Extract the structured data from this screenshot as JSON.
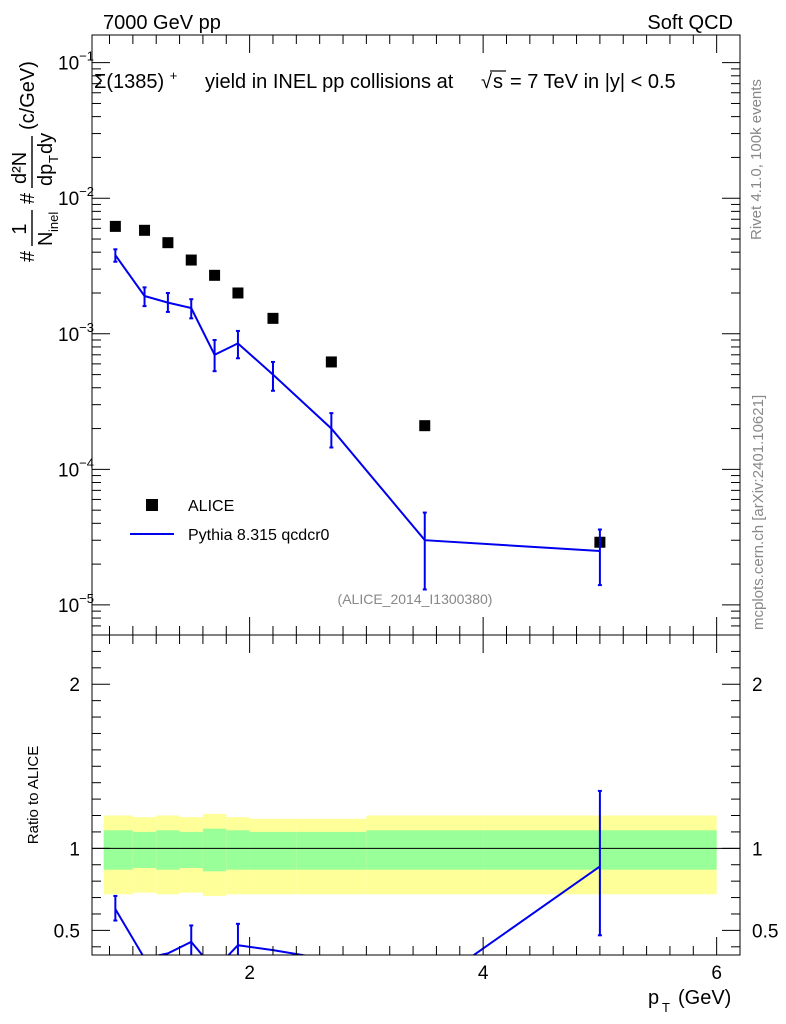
{
  "header": {
    "left": "7000 GeV pp",
    "right": "Soft QCD"
  },
  "side_text": {
    "rivet": "Rivet 4.1.0,  100k events",
    "mcplots": "mcplots.cern.ch [arXiv:2401.10621]"
  },
  "chart_data": [
    {
      "type": "scatter",
      "title": "Σ(1385)⁺ yield in INEL pp collisions at √s = 7 TeV in |y| < 0.5",
      "title_parts": {
        "sym": "Σ(1385)",
        "sup": "+",
        "mid": "yield in INEL pp collisions at",
        "sqrt": "√",
        "s": "s",
        "tail": "= 7 TeV in |y| < 0.5"
      },
      "ylabel": "#1/N_inel # d²N/dp_T dy (c/GeV)",
      "ylabel_parts": {
        "hash1": "#",
        "one": "1",
        "N": "N",
        "inel": "inel",
        "hash2": "#",
        "dN": "d²N",
        "dp": "dp",
        "T": "T",
        "dy": "dy",
        "unit": "(c/GeV)"
      },
      "xlabel": "p_T (GeV)",
      "yscale": "log",
      "ylim": [
        6e-06,
        0.16
      ],
      "xlim": [
        0.65,
        6.2
      ],
      "y_ticks": [
        {
          "value": 0.1,
          "label": "10",
          "exp": "−1"
        },
        {
          "value": 0.01,
          "label": "10",
          "exp": "−2"
        },
        {
          "value": 0.001,
          "label": "10",
          "exp": "−3"
        },
        {
          "value": 0.0001,
          "label": "10",
          "exp": "−4"
        },
        {
          "value": 1e-05,
          "label": "10",
          "exp": "−5"
        }
      ],
      "watermark": "(ALICE_2014_I1300380)",
      "legend": {
        "placement": "bottom-left",
        "entries": [
          "ALICE",
          "Pythia 8.315 qcdcr0"
        ]
      },
      "series": [
        {
          "name": "ALICE",
          "color": "#000000",
          "x": [
            0.85,
            1.1,
            1.3,
            1.5,
            1.7,
            1.9,
            2.2,
            2.7,
            3.5,
            5.0
          ],
          "y": [
            0.0062,
            0.0058,
            0.0047,
            0.0035,
            0.0027,
            0.002,
            0.0013,
            0.00062,
            0.00021,
            2.9e-05
          ]
        },
        {
          "name": "Pythia 8.315 qcdcr0",
          "color": "#0000ee",
          "x": [
            0.85,
            1.1,
            1.3,
            1.5,
            1.7,
            1.9,
            2.2,
            2.7,
            3.5,
            5.0
          ],
          "y": [
            0.0038,
            0.0019,
            0.0017,
            0.00155,
            0.0007,
            0.00085,
            0.0005,
            0.0002,
            3e-05,
            2.5e-05
          ],
          "err_lo": [
            0.0034,
            0.0016,
            0.00145,
            0.0013,
            0.00053,
            0.00066,
            0.00038,
            0.000145,
            1.3e-05,
            1.4e-05
          ],
          "err_hi": [
            0.0042,
            0.0022,
            0.002,
            0.0018,
            0.0009,
            0.00105,
            0.00062,
            0.00026,
            4.8e-05,
            3.6e-05
          ]
        }
      ]
    },
    {
      "type": "line",
      "ylabel": "Ratio to ALICE",
      "xlabel": "p_T (GeV)",
      "ylim": [
        0.35,
        2.3
      ],
      "xlim": [
        0.65,
        6.2
      ],
      "y_ticks": [
        0.5,
        1,
        2
      ],
      "y_tick_labels": [
        "0.5",
        "1",
        "2"
      ],
      "x_ticks": [
        2,
        4,
        6
      ],
      "x_tick_labels": [
        "2",
        "4",
        "6"
      ],
      "band_edges": [
        0.75,
        1.0,
        1.2,
        1.4,
        1.6,
        1.8,
        2.0,
        2.4,
        3.0,
        4.0,
        6.0
      ],
      "band_yellow_lo": [
        0.72,
        0.73,
        0.72,
        0.73,
        0.71,
        0.72,
        0.72,
        0.72,
        0.72,
        0.72
      ],
      "band_yellow_hi": [
        1.2,
        1.19,
        1.2,
        1.19,
        1.21,
        1.19,
        1.18,
        1.18,
        1.2,
        1.2
      ],
      "band_green_lo": [
        0.87,
        0.88,
        0.87,
        0.88,
        0.86,
        0.87,
        0.87,
        0.87,
        0.87,
        0.87
      ],
      "band_green_hi": [
        1.11,
        1.1,
        1.11,
        1.1,
        1.12,
        1.11,
        1.1,
        1.1,
        1.11,
        1.11
      ],
      "series": [
        {
          "name": "Pythia 8.315 qcdcr0 / ALICE",
          "color": "#0000ee",
          "x": [
            0.85,
            1.1,
            1.3,
            1.5,
            1.7,
            1.9,
            2.2,
            2.7,
            3.5,
            5.0
          ],
          "y": [
            0.63,
            0.33,
            0.36,
            0.43,
            0.26,
            0.41,
            0.38,
            0.32,
            0.14,
            0.89
          ],
          "err_lo": [
            0.56,
            0.0,
            0.0,
            0.34,
            0.0,
            0.34,
            0.0,
            0.0,
            0.0,
            0.47
          ],
          "err_hi": [
            0.71,
            0.0,
            0.0,
            0.53,
            0.0,
            0.54,
            0.0,
            0.0,
            0.0,
            1.35
          ],
          "has_err": [
            true,
            false,
            false,
            true,
            false,
            true,
            false,
            false,
            false,
            true
          ]
        }
      ]
    }
  ]
}
